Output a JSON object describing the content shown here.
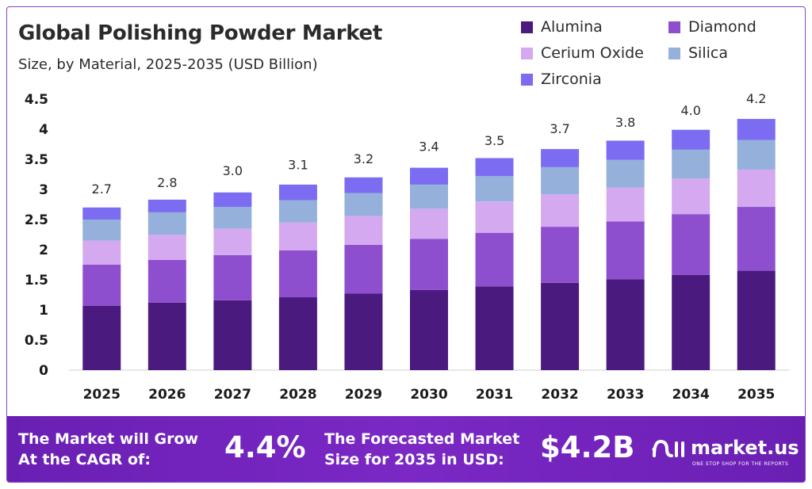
{
  "chart_data": {
    "type": "bar",
    "stacked": true,
    "title": "Global Polishing Powder Market",
    "subtitle": "Size, by Material, 2025-2035 (USD Billion)",
    "categories": [
      "2025",
      "2026",
      "2027",
      "2028",
      "2029",
      "2030",
      "2031",
      "2032",
      "2033",
      "2034",
      "2035"
    ],
    "totals": [
      "2.7",
      "2.8",
      "3.0",
      "3.1",
      "3.2",
      "3.4",
      "3.5",
      "3.7",
      "3.8",
      "4.0",
      "4.2"
    ],
    "series": [
      {
        "name": "Alumina",
        "color": "#4b1a7f",
        "values": [
          1.07,
          1.12,
          1.16,
          1.21,
          1.27,
          1.33,
          1.39,
          1.45,
          1.51,
          1.58,
          1.65
        ]
      },
      {
        "name": "Diamond",
        "color": "#8e4fce",
        "values": [
          0.68,
          0.71,
          0.75,
          0.78,
          0.81,
          0.85,
          0.89,
          0.93,
          0.96,
          1.01,
          1.06
        ]
      },
      {
        "name": "Cerium Oxide",
        "color": "#d4a9ef",
        "values": [
          0.4,
          0.42,
          0.44,
          0.46,
          0.48,
          0.5,
          0.52,
          0.54,
          0.56,
          0.59,
          0.62
        ]
      },
      {
        "name": "Silica",
        "color": "#94b0db",
        "values": [
          0.35,
          0.37,
          0.36,
          0.37,
          0.38,
          0.4,
          0.42,
          0.45,
          0.46,
          0.48,
          0.49
        ]
      },
      {
        "name": "Zirconia",
        "color": "#7b6cf2",
        "values": [
          0.2,
          0.21,
          0.24,
          0.26,
          0.26,
          0.28,
          0.3,
          0.3,
          0.32,
          0.33,
          0.35
        ]
      }
    ],
    "yticks": [
      "0",
      "0.5",
      "1",
      "1.5",
      "2",
      "2.5",
      "3",
      "3.5",
      "4",
      "4.5"
    ],
    "ylim": [
      0,
      4.5
    ],
    "legend_position": "top-right",
    "grid": false
  },
  "footer": {
    "cagr_label_line1": "The Market will Grow",
    "cagr_label_line2": "At the CAGR of:",
    "cagr_value": "4.4%",
    "forecast_label_line1": "The Forecasted Market",
    "forecast_label_line2": "Size for 2035 in USD:",
    "forecast_value": "$4.2B",
    "brand_name": "market.us",
    "brand_tagline": "ONE STOP SHOP FOR THE REPORTS"
  }
}
